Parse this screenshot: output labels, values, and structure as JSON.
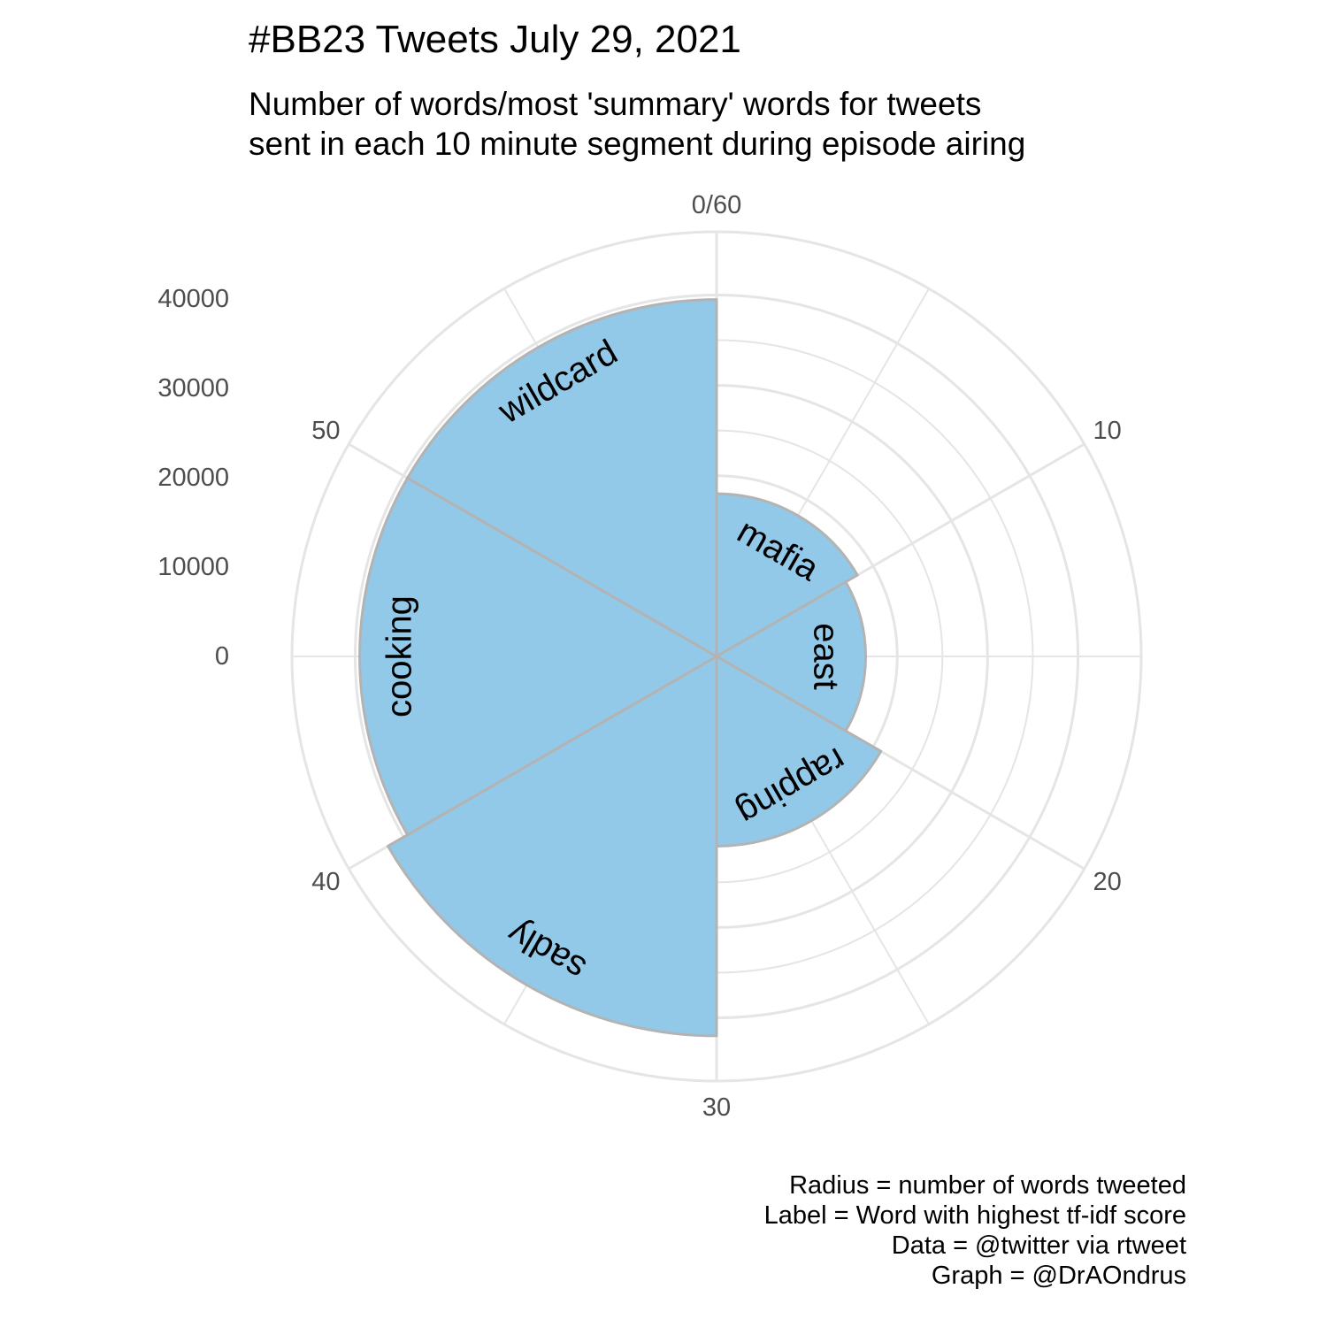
{
  "chart_data": {
    "type": "polar-bar",
    "title": "#BB23 Tweets July 29, 2021",
    "subtitle_lines": [
      "Number of words/most 'summary' words for tweets",
      "sent in each 10 minute segment during episode airing"
    ],
    "theta_ticks": [
      "0/60",
      "10",
      "20",
      "30",
      "40",
      "50"
    ],
    "theta_range": [
      0,
      60
    ],
    "radial_ticks": [
      0,
      10000,
      20000,
      30000,
      40000
    ],
    "radial_range": [
      0,
      47000
    ],
    "bar_width_minutes": 10,
    "bars": [
      {
        "start": 0,
        "end": 10,
        "value": 18000,
        "label": "mafia"
      },
      {
        "start": 10,
        "end": 20,
        "value": 16500,
        "label": "east"
      },
      {
        "start": 20,
        "end": 30,
        "value": 21000,
        "label": "rapping"
      },
      {
        "start": 30,
        "end": 40,
        "value": 42000,
        "label": "sadly"
      },
      {
        "start": 40,
        "end": 50,
        "value": 39500,
        "label": "cooking"
      },
      {
        "start": 50,
        "end": 60,
        "value": 39500,
        "label": "wildcard"
      }
    ],
    "colors": {
      "fill": "#93c9e8",
      "outline": "#b3b3b3",
      "grid": "#e5e5e5"
    }
  },
  "caption_lines": [
    "Radius = number of words tweeted",
    "Label = Word with highest tf-idf score",
    "Data = @twitter via rtweet",
    "Graph = @DrAOndrus"
  ]
}
